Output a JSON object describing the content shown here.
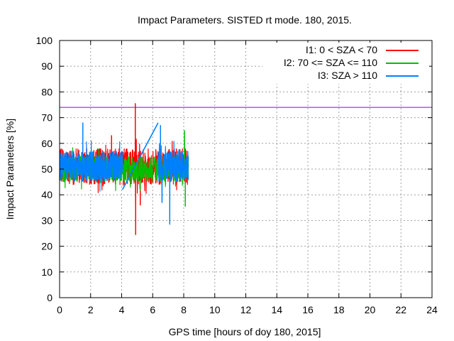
{
  "chart_data": {
    "type": "line",
    "title": "Impact Parameters. SISTED rt mode. 180, 2015.",
    "xlabel": "GPS time [hours of doy 180, 2015]",
    "ylabel": "Impact Parameters [%]",
    "xlim": [
      0,
      24
    ],
    "ylim": [
      0,
      100
    ],
    "x_ticks": [
      "0",
      "2",
      "4",
      "6",
      "8",
      "10",
      "12",
      "14",
      "16",
      "18",
      "20",
      "22",
      "24"
    ],
    "y_ticks": [
      "0",
      "10",
      "20",
      "30",
      "40",
      "50",
      "60",
      "70",
      "80",
      "90",
      "100"
    ],
    "grid": true,
    "legend_position": "top-right",
    "threshold_line": {
      "y": 74,
      "color": "#9400d3"
    },
    "series": [
      {
        "name": "I1: 0 < SZA < 70",
        "color": "#ff0000",
        "x_range": [
          0,
          8.3
        ],
        "center": 51,
        "spread": 7,
        "segments": [
          [
            0,
            8.3
          ]
        ],
        "spikes": [
          {
            "x": 4.9,
            "y": 24.5
          },
          {
            "x": 4.88,
            "y": 75.5
          },
          {
            "x": 5.2,
            "y": 36
          },
          {
            "x": 3.35,
            "y": 63
          }
        ]
      },
      {
        "name": "I2: 70 <= SZA <= 110",
        "color": "#00c000",
        "x_range": [
          0,
          8.3
        ],
        "center": 50,
        "spread": 5,
        "segments": [
          [
            0,
            8.3
          ]
        ],
        "spikes": [
          {
            "x": 8.1,
            "y": 35.5
          },
          {
            "x": 8.05,
            "y": 65
          },
          {
            "x": 6.55,
            "y": 59
          }
        ]
      },
      {
        "name": "I3: SZA > 110",
        "color": "#0080ff",
        "x_range": [
          0,
          8.3
        ],
        "center": 51,
        "spread": 6,
        "segments": [
          [
            0,
            4.05
          ],
          [
            6.35,
            8.3
          ]
        ],
        "gap_connector": [
          {
            "x": 4.05,
            "y": 42
          },
          {
            "x": 6.35,
            "y": 68
          }
        ],
        "spikes": [
          {
            "x": 1.5,
            "y": 68
          },
          {
            "x": 6.6,
            "y": 37
          },
          {
            "x": 7.1,
            "y": 28.5
          },
          {
            "x": 6.5,
            "y": 67
          }
        ]
      }
    ]
  }
}
